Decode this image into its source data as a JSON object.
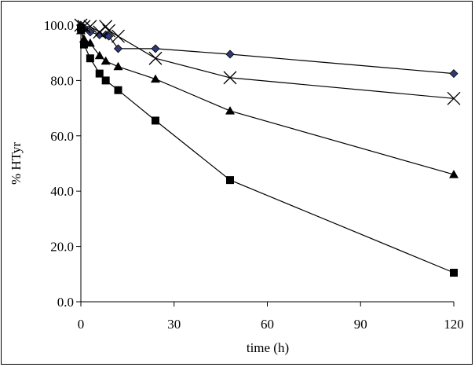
{
  "chart_data": {
    "type": "line",
    "title": "",
    "xlabel": "time (h)",
    "ylabel": "% HTyr",
    "xlim": [
      0,
      120
    ],
    "ylim": [
      0,
      100
    ],
    "xticks": [
      0,
      30,
      60,
      90,
      120
    ],
    "yticks": [
      0,
      20,
      40,
      60,
      80,
      100
    ],
    "xtick_labels": [
      "0",
      "30",
      "60",
      "90",
      "120"
    ],
    "ytick_labels": [
      "0.0",
      "20.0",
      "40.0",
      "60.0",
      "80.0",
      "100.0"
    ],
    "grid": false,
    "legend": "none",
    "series": [
      {
        "name": "series-diamond",
        "marker": "diamond",
        "color": "#2e3a78",
        "x": [
          0,
          1,
          3,
          6,
          8,
          9,
          12,
          24,
          48,
          120
        ],
        "y": [
          100,
          99,
          97.5,
          96.5,
          96.5,
          96,
          91.5,
          91.5,
          89.5,
          82.5
        ]
      },
      {
        "name": "series-cross",
        "marker": "x",
        "color": "#000000",
        "x": [
          0,
          1,
          3,
          6,
          8,
          9,
          12,
          24,
          48,
          120
        ],
        "y": [
          100,
          99.5,
          99.5,
          97.5,
          99.5,
          98,
          96,
          88,
          81,
          73.5
        ]
      },
      {
        "name": "series-triangle",
        "marker": "triangle",
        "color": "#000000",
        "x": [
          0,
          1,
          3,
          6,
          8,
          12,
          24,
          48,
          120
        ],
        "y": [
          98,
          95,
          93.5,
          89,
          87,
          85,
          80.5,
          69,
          46
        ]
      },
      {
        "name": "series-square",
        "marker": "square",
        "color": "#000000",
        "x": [
          0,
          1,
          3,
          6,
          8,
          12,
          24,
          48,
          120
        ],
        "y": [
          99,
          93,
          88,
          82.5,
          80,
          76.5,
          65.5,
          44,
          10.5
        ]
      }
    ]
  }
}
